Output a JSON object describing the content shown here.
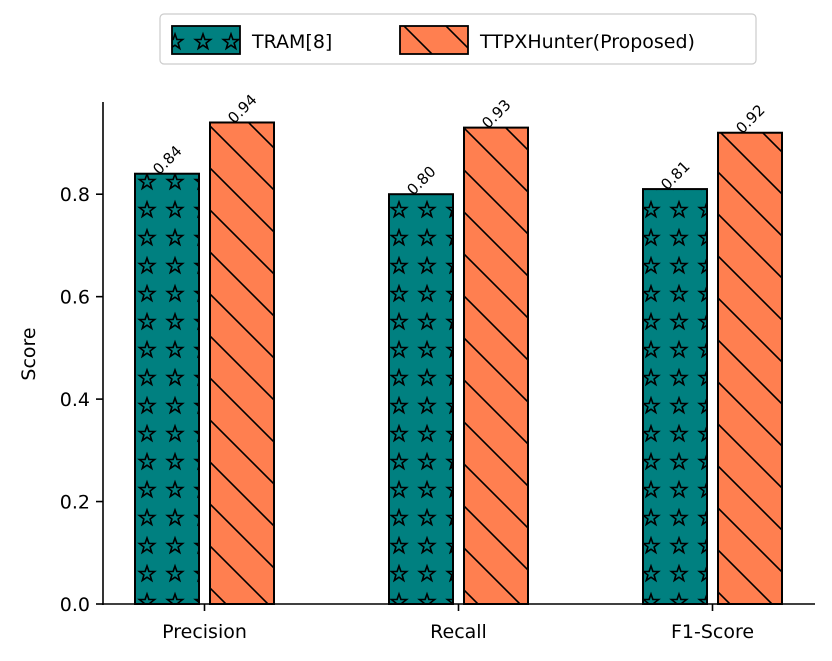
{
  "chart_data": {
    "type": "bar",
    "categories": [
      "Precision",
      "Recall",
      "F1-Score"
    ],
    "series": [
      {
        "name": "TRAM[8]",
        "values": [
          0.84,
          0.8,
          0.81
        ],
        "value_labels": [
          "0.84",
          "0.80",
          "0.81"
        ],
        "color": "#008080",
        "hatch": "stars"
      },
      {
        "name": "TTPXHunter(Proposed)",
        "values": [
          0.94,
          0.93,
          0.92
        ],
        "value_labels": [
          "0.94",
          "0.93",
          "0.92"
        ],
        "color": "#ff7f50",
        "hatch": "diagonal"
      }
    ],
    "ylabel": "Score",
    "ylim": [
      0,
      0.98
    ],
    "yticks": [
      0.0,
      0.2,
      0.4,
      0.6,
      0.8
    ],
    "ytick_labels": [
      "0.0",
      "0.2",
      "0.4",
      "0.6",
      "0.8"
    ],
    "legend_position": "top-center",
    "grid": false
  }
}
